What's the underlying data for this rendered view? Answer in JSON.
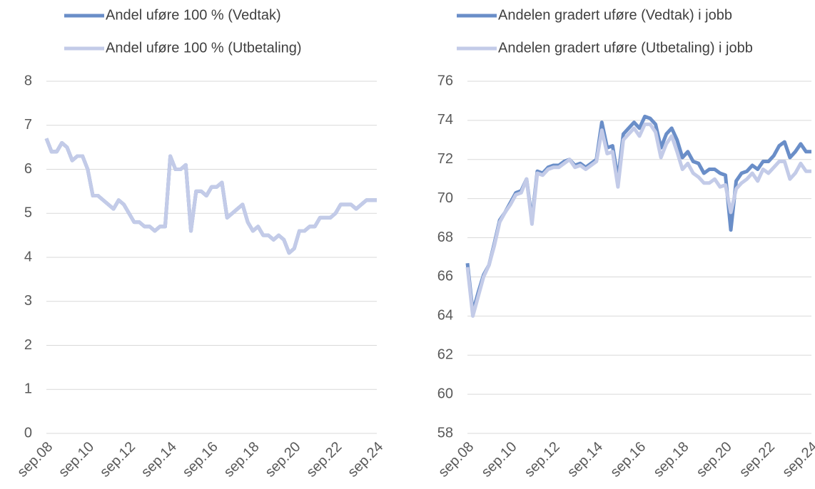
{
  "chart_data": [
    {
      "type": "line",
      "categories": [
        "sep.08",
        null,
        null,
        null,
        null,
        null,
        null,
        null,
        "sep.10",
        null,
        null,
        null,
        null,
        null,
        null,
        null,
        "sep.12",
        null,
        null,
        null,
        null,
        null,
        null,
        null,
        "sep.14",
        null,
        null,
        null,
        null,
        null,
        null,
        null,
        "sep.16",
        null,
        null,
        null,
        null,
        null,
        null,
        null,
        "sep.18",
        null,
        null,
        null,
        null,
        null,
        null,
        null,
        "sep.20",
        null,
        null,
        null,
        null,
        null,
        null,
        null,
        "sep.22",
        null,
        null,
        null,
        null,
        null,
        null,
        null,
        "sep.24"
      ],
      "series": [
        {
          "name": "Andel uføre 100 % (Vedtak)",
          "color": "#6a8ec8",
          "values": [
            6.7,
            6.4,
            6.4,
            6.6,
            6.5,
            6.2,
            6.3,
            6.3,
            6.0,
            5.4,
            5.4,
            5.3,
            5.2,
            5.1,
            5.3,
            5.2,
            5.0,
            4.8,
            4.8,
            4.7,
            4.7,
            4.6,
            4.7,
            4.7,
            6.3,
            6.0,
            6.0,
            6.1,
            4.6,
            5.5,
            5.5,
            5.4,
            5.6,
            5.6,
            5.7,
            4.9,
            5.0,
            5.1,
            5.2,
            4.8,
            4.6,
            4.7,
            4.5,
            4.5,
            4.4,
            4.5,
            4.4,
            4.1,
            4.2,
            4.6,
            4.6,
            4.7,
            4.7,
            4.9,
            4.9,
            4.9,
            5.0,
            5.2,
            5.2,
            5.2,
            5.1,
            5.2,
            5.3,
            5.3,
            5.3
          ]
        },
        {
          "name": "Andel uføre 100 % (Utbetaling)",
          "color": "#c3cbe8",
          "values": [
            6.7,
            6.4,
            6.4,
            6.6,
            6.5,
            6.2,
            6.3,
            6.3,
            6.0,
            5.4,
            5.4,
            5.3,
            5.2,
            5.1,
            5.3,
            5.2,
            5.0,
            4.8,
            4.8,
            4.7,
            4.7,
            4.6,
            4.7,
            4.7,
            6.3,
            6.0,
            6.0,
            6.1,
            4.6,
            5.5,
            5.5,
            5.4,
            5.6,
            5.6,
            5.7,
            4.9,
            5.0,
            5.1,
            5.2,
            4.8,
            4.6,
            4.7,
            4.5,
            4.5,
            4.4,
            4.5,
            4.4,
            4.1,
            4.2,
            4.6,
            4.6,
            4.7,
            4.7,
            4.9,
            4.9,
            4.9,
            5.0,
            5.2,
            5.2,
            5.2,
            5.1,
            5.2,
            5.3,
            5.3,
            5.3
          ]
        }
      ],
      "ylim": [
        0,
        8
      ],
      "yticks": [
        0,
        1,
        2,
        3,
        4,
        5,
        6,
        7,
        8
      ],
      "grid": true
    },
    {
      "type": "line",
      "categories": [
        "sep.08",
        null,
        null,
        null,
        null,
        null,
        null,
        null,
        "sep.10",
        null,
        null,
        null,
        null,
        null,
        null,
        null,
        "sep.12",
        null,
        null,
        null,
        null,
        null,
        null,
        null,
        "sep.14",
        null,
        null,
        null,
        null,
        null,
        null,
        null,
        "sep.16",
        null,
        null,
        null,
        null,
        null,
        null,
        null,
        "sep.18",
        null,
        null,
        null,
        null,
        null,
        null,
        null,
        "sep.20",
        null,
        null,
        null,
        null,
        null,
        null,
        null,
        "sep.22",
        null,
        null,
        null,
        null,
        null,
        null,
        null,
        "sep.24"
      ],
      "series": [
        {
          "name": "Andelen gradert uføre (Vedtak) i jobb",
          "color": "#6a8ec8",
          "values": [
            66.7,
            64.2,
            65.2,
            66.1,
            66.6,
            67.7,
            68.9,
            69.3,
            69.8,
            70.3,
            70.4,
            71.0,
            68.9,
            71.4,
            71.3,
            71.6,
            71.7,
            71.7,
            71.9,
            72.0,
            71.7,
            71.8,
            71.6,
            71.8,
            72.0,
            73.9,
            72.6,
            72.7,
            71.0,
            73.3,
            73.6,
            73.9,
            73.6,
            74.2,
            74.1,
            73.8,
            72.6,
            73.3,
            73.6,
            73.0,
            72.1,
            72.4,
            71.9,
            71.8,
            71.3,
            71.5,
            71.5,
            71.3,
            71.2,
            68.4,
            70.9,
            71.3,
            71.4,
            71.7,
            71.5,
            71.9,
            71.9,
            72.2,
            72.7,
            72.9,
            72.1,
            72.4,
            72.8,
            72.4,
            72.4
          ]
        },
        {
          "name": "Andelen gradert uføre (Utbetaling) i jobb",
          "color": "#c3cbe8",
          "values": [
            66.5,
            64.0,
            65.0,
            66.0,
            66.6,
            67.6,
            68.8,
            69.3,
            69.7,
            70.2,
            70.3,
            71.0,
            68.7,
            71.3,
            71.2,
            71.5,
            71.6,
            71.6,
            71.8,
            72.0,
            71.6,
            71.7,
            71.5,
            71.7,
            71.9,
            73.5,
            72.3,
            72.4,
            70.6,
            73.0,
            73.3,
            73.6,
            73.2,
            73.8,
            73.8,
            73.4,
            72.1,
            72.8,
            73.2,
            72.4,
            71.5,
            71.8,
            71.3,
            71.1,
            70.8,
            70.8,
            71.0,
            70.6,
            70.7,
            69.3,
            70.5,
            70.8,
            71.0,
            71.3,
            70.9,
            71.5,
            71.3,
            71.6,
            71.9,
            71.9,
            71.0,
            71.3,
            71.8,
            71.4,
            71.4
          ]
        }
      ],
      "ylim": [
        58,
        76
      ],
      "yticks": [
        58,
        60,
        62,
        64,
        66,
        68,
        70,
        72,
        74,
        76
      ],
      "grid": true
    }
  ]
}
